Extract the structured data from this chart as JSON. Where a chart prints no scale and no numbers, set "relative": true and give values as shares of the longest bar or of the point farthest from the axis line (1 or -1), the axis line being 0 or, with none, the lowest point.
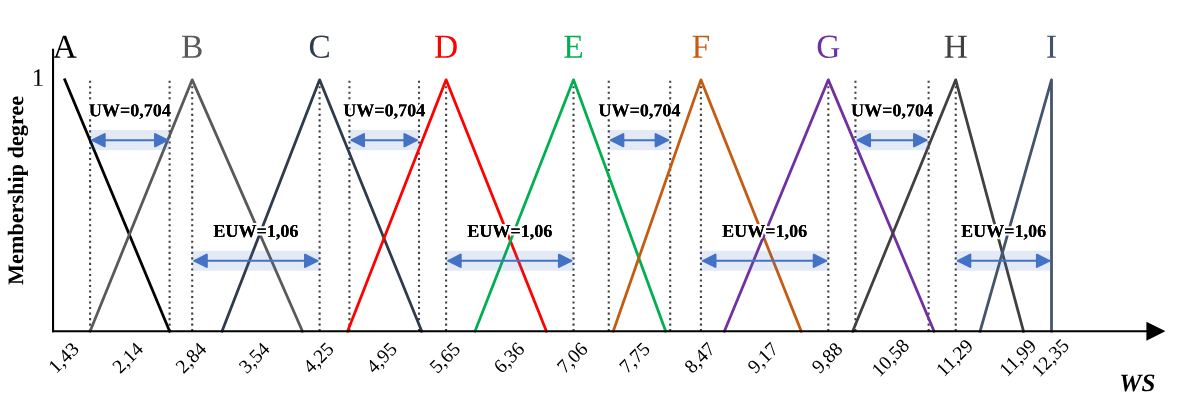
{
  "chart_data": {
    "type": "line",
    "relative": true,
    "xlabel": "WS",
    "ylabel": "Membership degree",
    "xlim": [
      1.3,
      13.5
    ],
    "xticks": [
      {
        "value": 1.43,
        "label": "1,43"
      },
      {
        "value": 2.14,
        "label": "2,14"
      },
      {
        "value": 2.84,
        "label": "2,84"
      },
      {
        "value": 3.54,
        "label": "3,54"
      },
      {
        "value": 4.25,
        "label": "4,25"
      },
      {
        "value": 4.95,
        "label": "4,95"
      },
      {
        "value": 5.65,
        "label": "5,65"
      },
      {
        "value": 6.36,
        "label": "6,36"
      },
      {
        "value": 7.06,
        "label": "7,06"
      },
      {
        "value": 7.75,
        "label": "7,75"
      },
      {
        "value": 8.47,
        "label": "8,47"
      },
      {
        "value": 9.17,
        "label": "9,17"
      },
      {
        "value": 9.88,
        "label": "9,88"
      },
      {
        "value": 10.58,
        "label": "10,58"
      },
      {
        "value": 11.29,
        "label": "11,29"
      },
      {
        "value": 11.99,
        "label": "11,99"
      },
      {
        "value": 12.35,
        "label": "12,35"
      }
    ],
    "series": [
      {
        "name": "A",
        "color": "#000000",
        "x": [
          1.43,
          2.59
        ],
        "values": [
          1,
          0
        ]
      },
      {
        "name": "B",
        "color": "#595959",
        "x": [
          1.71,
          2.84,
          4.06
        ],
        "values": [
          0,
          1,
          0
        ]
      },
      {
        "name": "C",
        "color": "#2f3a4d",
        "x": [
          3.17,
          4.25,
          5.38
        ],
        "values": [
          0,
          1,
          0
        ]
      },
      {
        "name": "D",
        "color": "#ff0000",
        "x": [
          4.56,
          5.65,
          6.76
        ],
        "values": [
          0,
          1,
          0
        ]
      },
      {
        "name": "E",
        "color": "#00b050",
        "x": [
          5.97,
          7.06,
          8.08
        ],
        "values": [
          0,
          1,
          0
        ]
      },
      {
        "name": "F",
        "color": "#c55a11",
        "x": [
          7.5,
          8.47,
          9.58
        ],
        "values": [
          0,
          1,
          0
        ]
      },
      {
        "name": "G",
        "color": "#7030a0",
        "x": [
          8.73,
          9.88,
          11.05
        ],
        "values": [
          0,
          1,
          0
        ]
      },
      {
        "name": "H",
        "color": "#404040",
        "x": [
          10.15,
          11.29,
          12.04
        ],
        "values": [
          0,
          1,
          0
        ]
      },
      {
        "name": "I",
        "color": "#44546a",
        "x": [
          11.56,
          12.35,
          12.35
        ],
        "values": [
          0,
          1,
          0
        ]
      }
    ],
    "ref_lines": [
      {
        "axis": "x",
        "value": 1.71,
        "line_style": "dotted",
        "color": "#404040"
      },
      {
        "axis": "x",
        "value": 2.59,
        "line_style": "dotted",
        "color": "#404040"
      },
      {
        "axis": "x",
        "value": 2.84,
        "line_style": "dotted",
        "color": "#404040"
      },
      {
        "axis": "x",
        "value": 4.25,
        "line_style": "dotted",
        "color": "#404040"
      },
      {
        "axis": "x",
        "value": 4.58,
        "line_style": "dotted",
        "color": "#404040"
      },
      {
        "axis": "x",
        "value": 5.35,
        "line_style": "dotted",
        "color": "#404040"
      },
      {
        "axis": "x",
        "value": 5.65,
        "line_style": "dotted",
        "color": "#404040"
      },
      {
        "axis": "x",
        "value": 7.06,
        "line_style": "dotted",
        "color": "#404040"
      },
      {
        "axis": "x",
        "value": 7.45,
        "line_style": "dotted",
        "color": "#404040"
      },
      {
        "axis": "x",
        "value": 8.13,
        "line_style": "dotted",
        "color": "#404040"
      },
      {
        "axis": "x",
        "value": 8.47,
        "line_style": "dotted",
        "color": "#404040"
      },
      {
        "axis": "x",
        "value": 9.88,
        "line_style": "dotted",
        "color": "#404040"
      },
      {
        "axis": "x",
        "value": 10.18,
        "line_style": "dotted",
        "color": "#404040"
      },
      {
        "axis": "x",
        "value": 10.99,
        "line_style": "dotted",
        "color": "#404040"
      },
      {
        "axis": "x",
        "value": 11.29,
        "line_style": "dotted",
        "color": "#404040"
      }
    ],
    "bands": [
      {
        "axis": "x",
        "from": 1.71,
        "to": 2.59,
        "label": "UW=0,704",
        "color": "#4472c4"
      },
      {
        "axis": "x",
        "from": 2.84,
        "to": 4.25,
        "label": "EUW=1,06",
        "color": "#4472c4"
      },
      {
        "axis": "x",
        "from": 4.58,
        "to": 5.35,
        "label": "UW=0,704",
        "color": "#4472c4"
      },
      {
        "axis": "x",
        "from": 5.65,
        "to": 7.06,
        "label": "EUW=1,06",
        "color": "#4472c4"
      },
      {
        "axis": "x",
        "from": 7.45,
        "to": 8.13,
        "label": "UW=0,704",
        "color": "#4472c4"
      },
      {
        "axis": "x",
        "from": 8.47,
        "to": 9.88,
        "label": "EUW=1,06",
        "color": "#4472c4"
      },
      {
        "axis": "x",
        "from": 10.18,
        "to": 10.99,
        "label": "UW=0,704",
        "color": "#4472c4"
      },
      {
        "axis": "x",
        "from": 11.29,
        "to": 12.35,
        "label": "EUW=1,06",
        "color": "#4472c4"
      }
    ],
    "annotations": [
      "1"
    ],
    "grid": false,
    "legend": false,
    "marker": "none",
    "line_style": "solid"
  }
}
